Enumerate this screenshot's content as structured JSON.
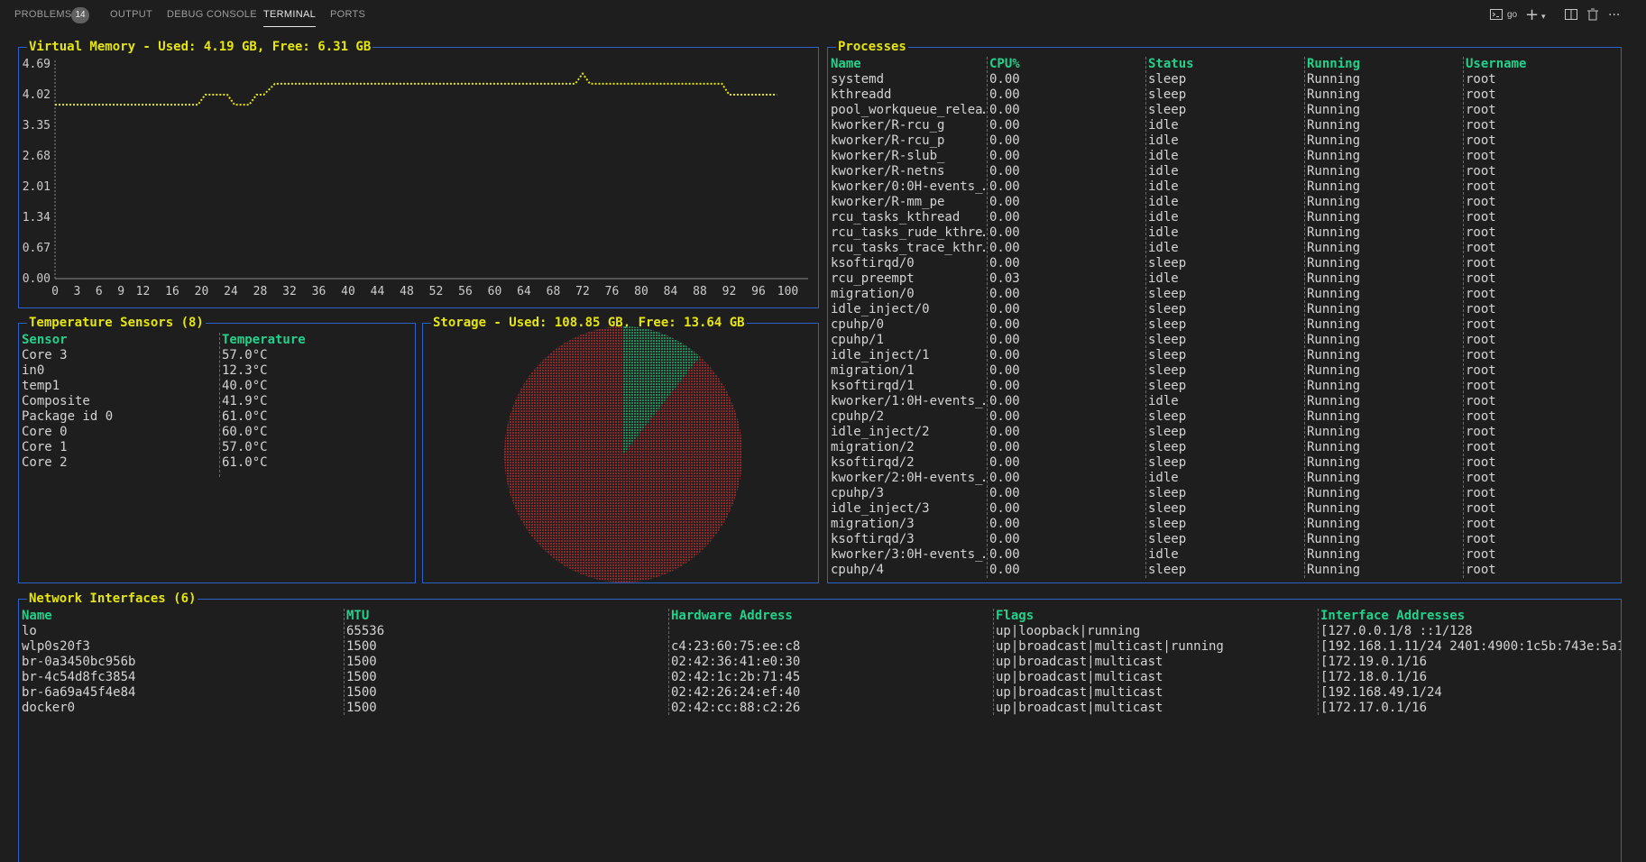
{
  "tabs": [
    {
      "label": "PROBLEMS",
      "badge": "14"
    },
    {
      "label": "OUTPUT"
    },
    {
      "label": "DEBUG CONSOLE"
    },
    {
      "label": "TERMINAL",
      "active": true
    },
    {
      "label": "PORTS"
    }
  ],
  "toolbar": {
    "terminal_name": "go",
    "icons": [
      "terminal-icon",
      "plus-icon",
      "chevron-down-icon",
      "split-icon",
      "trash-icon",
      "more-icon"
    ]
  },
  "memory": {
    "title": "Virtual Memory - Used: 4.19 GB, Free: 6.31 GB"
  },
  "chart_data": {
    "type": "line",
    "title": "Virtual Memory - Used: 4.19 GB, Free: 6.31 GB",
    "yticks": [
      "4.69",
      "4.02",
      "3.35",
      "2.68",
      "2.01",
      "1.34",
      "0.67",
      "0.00"
    ],
    "xticks": [
      "0",
      "3",
      "6",
      "9",
      "12",
      "16",
      "20",
      "24",
      "28",
      "32",
      "36",
      "40",
      "44",
      "48",
      "52",
      "56",
      "60",
      "64",
      "68",
      "72",
      "76",
      "80",
      "84",
      "88",
      "92",
      "96",
      "100"
    ],
    "ylim": [
      0,
      4.69
    ],
    "xlim": [
      0,
      104
    ],
    "color": "#e5e510",
    "series": [
      {
        "x": [
          0,
          19.5,
          20.5,
          23.5,
          24.5,
          26.5,
          27.5,
          28.5,
          30,
          71,
          72,
          73,
          91,
          92,
          98.5
        ],
        "values": [
          3.8,
          3.8,
          4.02,
          4.02,
          3.8,
          3.8,
          4.02,
          4.02,
          4.26,
          4.26,
          4.48,
          4.26,
          4.26,
          4.02,
          4.02
        ]
      }
    ]
  },
  "temperature": {
    "title": "Temperature Sensors (8)",
    "headers": [
      "Sensor",
      "Temperature"
    ],
    "rows": [
      [
        "Core 3",
        "57.0°C"
      ],
      [
        "in0",
        "12.3°C"
      ],
      [
        "temp1",
        "40.0°C"
      ],
      [
        "Composite",
        "41.9°C"
      ],
      [
        "Package id 0",
        "61.0°C"
      ],
      [
        "Core 0",
        "60.0°C"
      ],
      [
        "Core 1",
        "57.0°C"
      ],
      [
        "Core 2",
        "61.0°C"
      ]
    ]
  },
  "storage": {
    "title": "Storage - Used: 108.85 GB, Free: 13.64 GB",
    "used": 108.85,
    "free": 13.64,
    "used_color": "#8b2a2a",
    "free_color": "#1f8a5a"
  },
  "processes": {
    "title": "Processes",
    "headers": [
      "Name",
      "CPU%",
      "Status",
      "Running",
      "Username"
    ],
    "rows": [
      [
        "systemd",
        "0.00",
        "sleep",
        "Running",
        "root"
      ],
      [
        "kthreadd",
        "0.00",
        "sleep",
        "Running",
        "root"
      ],
      [
        "pool_workqueue_relea…",
        "0.00",
        "sleep",
        "Running",
        "root"
      ],
      [
        "kworker/R-rcu_g",
        "0.00",
        "idle",
        "Running",
        "root"
      ],
      [
        "kworker/R-rcu_p",
        "0.00",
        "idle",
        "Running",
        "root"
      ],
      [
        "kworker/R-slub_",
        "0.00",
        "idle",
        "Running",
        "root"
      ],
      [
        "kworker/R-netns",
        "0.00",
        "idle",
        "Running",
        "root"
      ],
      [
        "kworker/0:0H-events_…",
        "0.00",
        "idle",
        "Running",
        "root"
      ],
      [
        "kworker/R-mm_pe",
        "0.00",
        "idle",
        "Running",
        "root"
      ],
      [
        "rcu_tasks_kthread",
        "0.00",
        "idle",
        "Running",
        "root"
      ],
      [
        "rcu_tasks_rude_kthre…",
        "0.00",
        "idle",
        "Running",
        "root"
      ],
      [
        "rcu_tasks_trace_kthr…",
        "0.00",
        "idle",
        "Running",
        "root"
      ],
      [
        "ksoftirqd/0",
        "0.00",
        "sleep",
        "Running",
        "root"
      ],
      [
        "rcu_preempt",
        "0.03",
        "idle",
        "Running",
        "root"
      ],
      [
        "migration/0",
        "0.00",
        "sleep",
        "Running",
        "root"
      ],
      [
        "idle_inject/0",
        "0.00",
        "sleep",
        "Running",
        "root"
      ],
      [
        "cpuhp/0",
        "0.00",
        "sleep",
        "Running",
        "root"
      ],
      [
        "cpuhp/1",
        "0.00",
        "sleep",
        "Running",
        "root"
      ],
      [
        "idle_inject/1",
        "0.00",
        "sleep",
        "Running",
        "root"
      ],
      [
        "migration/1",
        "0.00",
        "sleep",
        "Running",
        "root"
      ],
      [
        "ksoftirqd/1",
        "0.00",
        "sleep",
        "Running",
        "root"
      ],
      [
        "kworker/1:0H-events_…",
        "0.00",
        "idle",
        "Running",
        "root"
      ],
      [
        "cpuhp/2",
        "0.00",
        "sleep",
        "Running",
        "root"
      ],
      [
        "idle_inject/2",
        "0.00",
        "sleep",
        "Running",
        "root"
      ],
      [
        "migration/2",
        "0.00",
        "sleep",
        "Running",
        "root"
      ],
      [
        "ksoftirqd/2",
        "0.00",
        "sleep",
        "Running",
        "root"
      ],
      [
        "kworker/2:0H-events_…",
        "0.00",
        "idle",
        "Running",
        "root"
      ],
      [
        "cpuhp/3",
        "0.00",
        "sleep",
        "Running",
        "root"
      ],
      [
        "idle_inject/3",
        "0.00",
        "sleep",
        "Running",
        "root"
      ],
      [
        "migration/3",
        "0.00",
        "sleep",
        "Running",
        "root"
      ],
      [
        "ksoftirqd/3",
        "0.00",
        "sleep",
        "Running",
        "root"
      ],
      [
        "kworker/3:0H-events_…",
        "0.00",
        "idle",
        "Running",
        "root"
      ],
      [
        "cpuhp/4",
        "0.00",
        "sleep",
        "Running",
        "root"
      ]
    ]
  },
  "network": {
    "title": "Network Interfaces (6)",
    "headers": [
      "Name",
      "MTU",
      "Hardware Address",
      "Flags",
      "Interface Addresses"
    ],
    "rows": [
      [
        "lo",
        "65536",
        "",
        "up|loopback|running",
        "[127.0.0.1/8 ::1/128"
      ],
      [
        "wlp0s20f3",
        "1500",
        "c4:23:60:75:ee:c8",
        "up|broadcast|multicast|running",
        "[192.168.1.11/24 2401:4900:1c5b:743e:5a1…"
      ],
      [
        "br-0a3450bc956b",
        "1500",
        "02:42:36:41:e0:30",
        "up|broadcast|multicast",
        "[172.19.0.1/16"
      ],
      [
        "br-4c54d8fc3854",
        "1500",
        "02:42:1c:2b:71:45",
        "up|broadcast|multicast",
        "[172.18.0.1/16"
      ],
      [
        "br-6a69a45f4e84",
        "1500",
        "02:42:26:24:ef:40",
        "up|broadcast|multicast",
        "[192.168.49.1/24"
      ],
      [
        "docker0",
        "1500",
        "02:42:cc:88:c2:26",
        "up|broadcast|multicast",
        "[172.17.0.1/16"
      ]
    ]
  }
}
